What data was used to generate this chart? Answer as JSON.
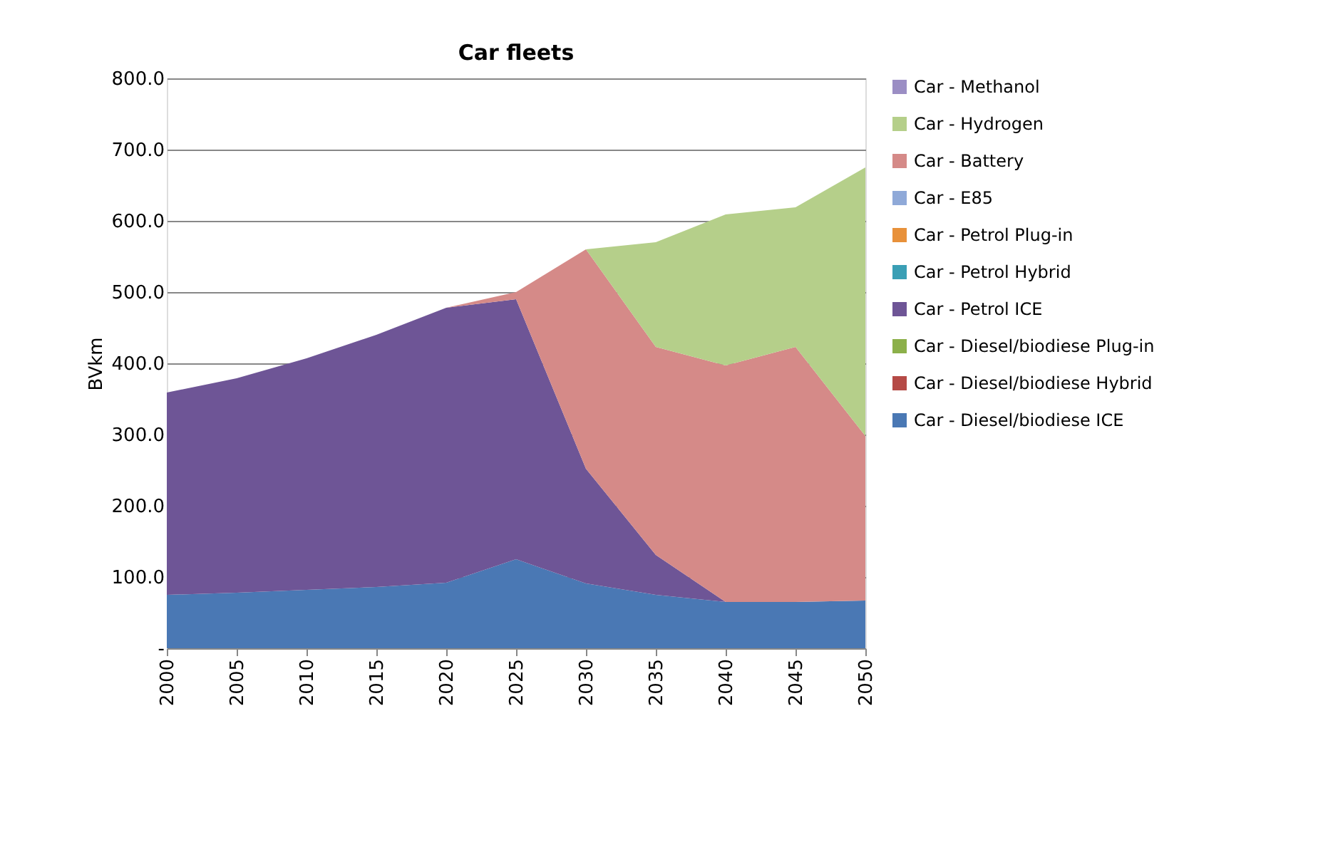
{
  "chart_data": {
    "type": "area",
    "stacked": true,
    "title": "Car fleets",
    "ylabel": "BVkm",
    "categories": [
      "2000",
      "2005",
      "2010",
      "2015",
      "2020",
      "2025",
      "2030",
      "2035",
      "2040",
      "2045",
      "2050"
    ],
    "series": [
      {
        "name": "Car - Diesel/biodiese ICE",
        "color": "#4a78b4",
        "values": [
          75,
          78,
          82,
          86,
          92,
          125,
          91,
          75,
          65,
          65,
          67
        ]
      },
      {
        "name": "Car - Diesel/biodiese Hybrid",
        "color": "#b54a46",
        "values": [
          null,
          null,
          null,
          null,
          null,
          null,
          null,
          null,
          null,
          null,
          null
        ]
      },
      {
        "name": "Car - Diesel/biodiese Plug-in",
        "color": "#8cb04a",
        "values": [
          null,
          null,
          null,
          null,
          null,
          null,
          null,
          null,
          null,
          null,
          null
        ]
      },
      {
        "name": "Car - Petrol ICE",
        "color": "#6e5596",
        "values": [
          284,
          301,
          325,
          354,
          386,
          365,
          161,
          56,
          0,
          0,
          0
        ]
      },
      {
        "name": "Car - Petrol Hybrid",
        "color": "#3a9fb5",
        "values": [
          null,
          null,
          null,
          null,
          null,
          null,
          null,
          null,
          null,
          null,
          null
        ]
      },
      {
        "name": "Car - Petrol Plug-in",
        "color": "#e8913a",
        "values": [
          null,
          null,
          null,
          null,
          null,
          null,
          null,
          null,
          null,
          null,
          null
        ]
      },
      {
        "name": "Car - E85",
        "color": "#8fa9d8",
        "values": [
          null,
          null,
          null,
          null,
          null,
          null,
          null,
          null,
          null,
          null,
          null
        ]
      },
      {
        "name": "Car - Battery",
        "color": "#d58a88",
        "values": [
          0,
          0,
          0,
          0,
          0,
          10,
          308,
          292,
          332,
          358,
          231
        ]
      },
      {
        "name": "Car - Hydrogen",
        "color": "#b5cf8a",
        "values": [
          0,
          0,
          0,
          0,
          0,
          0,
          0,
          147,
          212,
          196,
          377
        ]
      },
      {
        "name": "Car - Methanol",
        "color": "#9b8ec4",
        "values": [
          null,
          null,
          null,
          null,
          null,
          null,
          null,
          null,
          null,
          null,
          null
        ]
      }
    ],
    "ylim": [
      0,
      800
    ],
    "yticks": [
      {
        "value": 0,
        "label": "-"
      },
      {
        "value": 100,
        "label": "100.0"
      },
      {
        "value": 200,
        "label": "200.0"
      },
      {
        "value": 300,
        "label": "300.0"
      },
      {
        "value": 400,
        "label": "400.0"
      },
      {
        "value": 500,
        "label": "500.0"
      },
      {
        "value": 600,
        "label": "600.0"
      },
      {
        "value": 700,
        "label": "700.0"
      },
      {
        "value": 800,
        "label": "800.0"
      }
    ],
    "grid": "y",
    "legend": "right"
  }
}
